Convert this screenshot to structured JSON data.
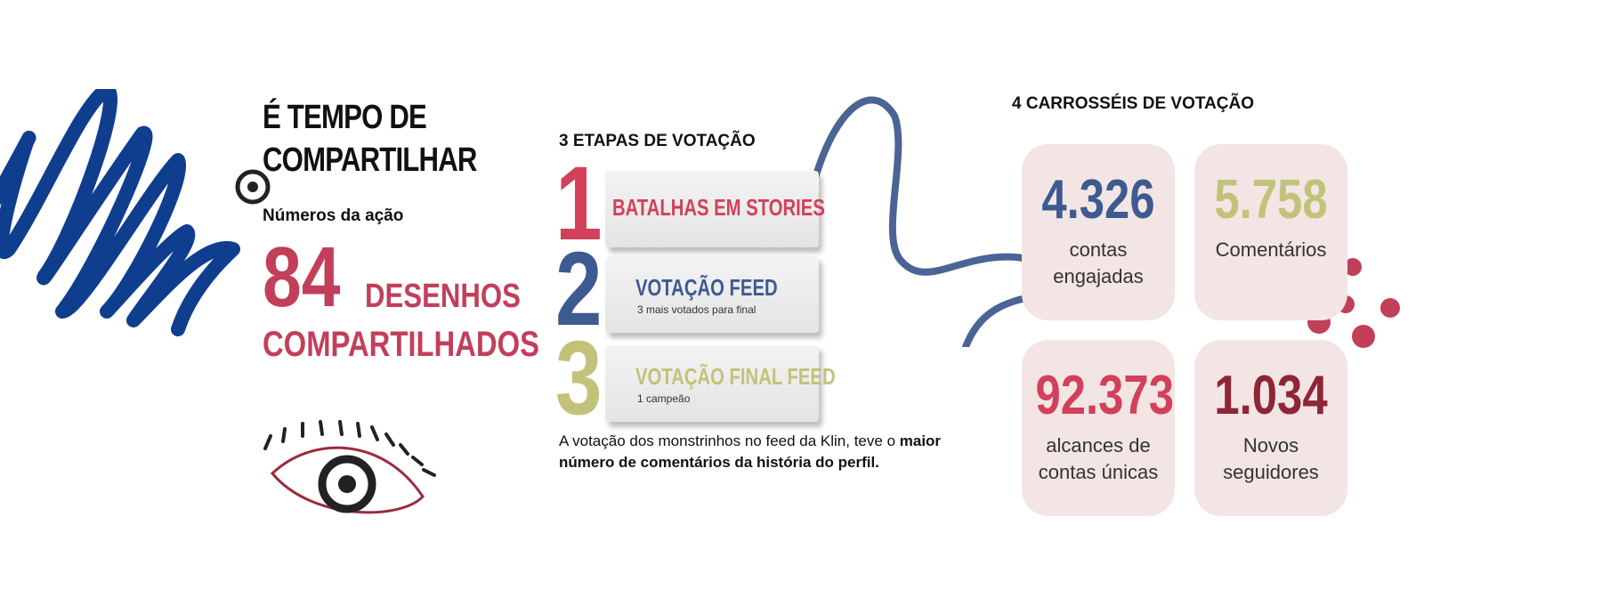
{
  "header": {
    "title_line1": "É TEMPO DE",
    "title_line2": "COMPARTILHAR",
    "subtitle": "Números da ação"
  },
  "highlight": {
    "number": "84",
    "word1": "DESENHOS",
    "word2": "COMPARTILHADOS"
  },
  "etapas": {
    "title": "3 ETAPAS DE VOTAÇÃO",
    "steps": [
      {
        "number": "1",
        "label": "BATALHAS EM STORIES",
        "sub": "",
        "color": "#d2405c"
      },
      {
        "number": "2",
        "label": "VOTAÇÃO FEED",
        "sub": "3 mais votados para final",
        "color": "#3d5a91"
      },
      {
        "number": "3",
        "label": "VOTAÇÃO FINAL FEED",
        "sub": "1 campeão",
        "color": "#c2c27a"
      }
    ],
    "description_plain": "A votação dos monstrinhos no feed da Klin, teve o ",
    "description_bold": "maior número de comentários da história do perfil."
  },
  "carrosseis": {
    "title": "4 CARROSSÉIS DE VOTAÇÃO",
    "stats": [
      {
        "value": "4.326",
        "label": "contas engajadas",
        "color": "#3d5a91"
      },
      {
        "value": "5.758",
        "label": "Comentários",
        "color": "#c2c27a"
      },
      {
        "value": "92.373",
        "label": "alcances de contas únicas",
        "color": "#d2405c"
      },
      {
        "value": "1.034",
        "label": "Novos seguidores",
        "color": "#8e2638"
      }
    ]
  },
  "colors": {
    "brand_red": "#c23f5a",
    "brand_blue": "#0f3e8f",
    "card_bg": "#f2e5e3"
  }
}
